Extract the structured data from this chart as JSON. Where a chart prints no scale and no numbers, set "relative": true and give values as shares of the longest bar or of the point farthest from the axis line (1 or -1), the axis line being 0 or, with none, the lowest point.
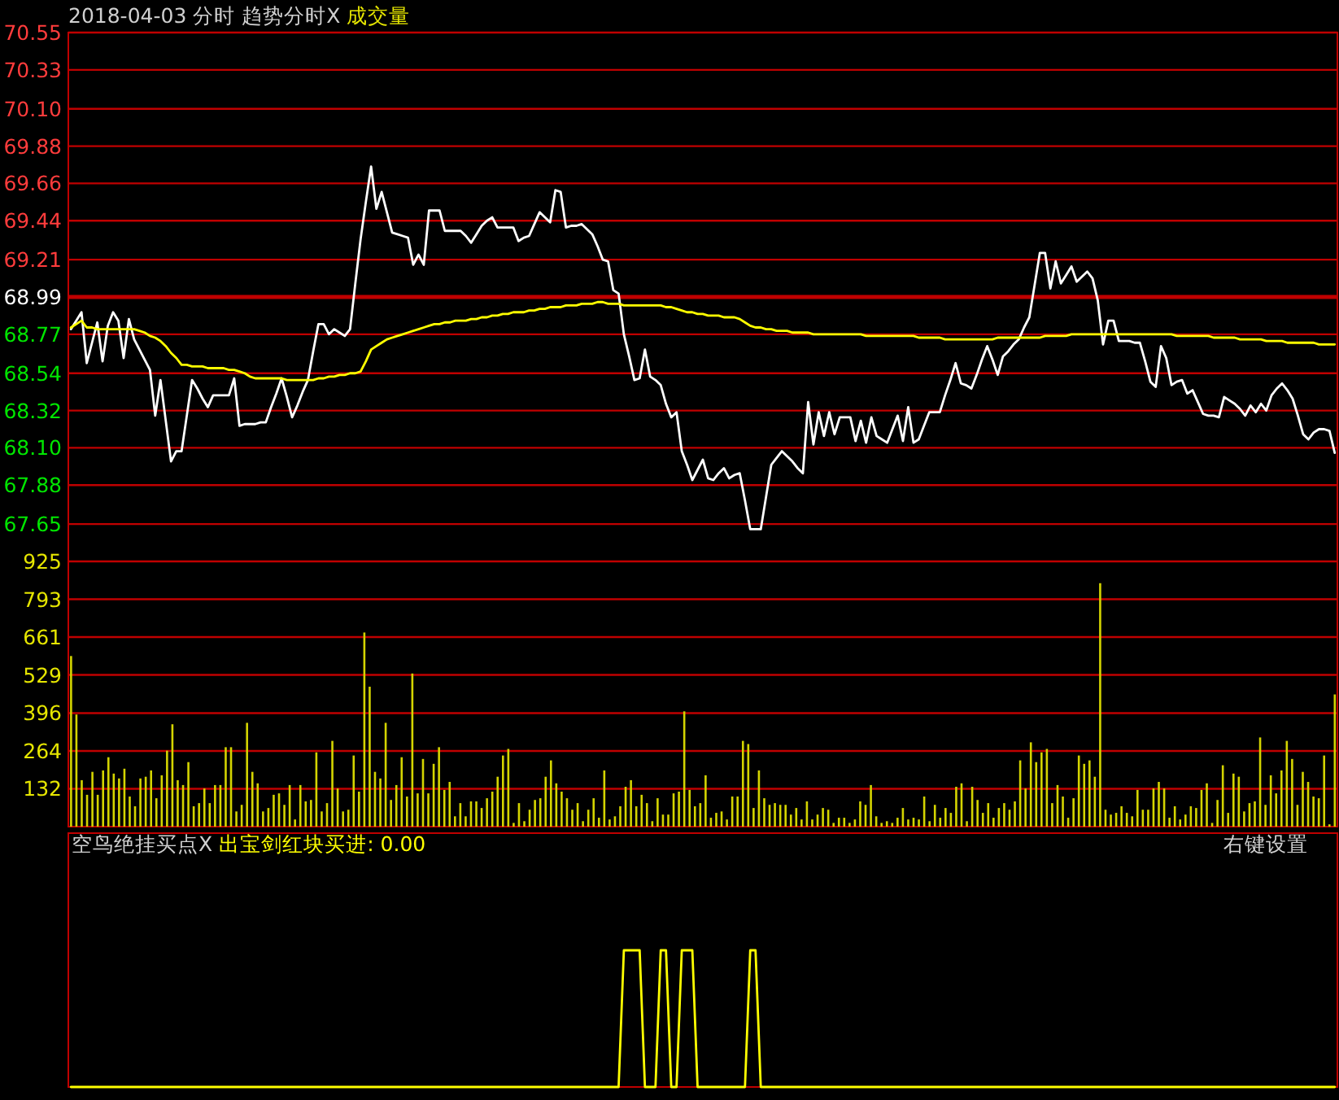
{
  "chart_data": [
    {
      "type": "line",
      "title": "2018-04-03 分时 趋势分时X",
      "subtitle": "成交量",
      "categories": [
        null,
        null,
        null,
        null,
        null,
        null,
        null,
        null,
        null,
        null,
        null,
        null,
        null,
        null,
        null,
        null,
        null,
        null,
        null,
        null,
        null,
        null,
        null,
        null,
        null,
        null,
        null,
        null,
        null,
        null,
        null,
        null,
        null,
        null,
        null,
        null,
        null,
        null,
        null,
        null,
        null,
        null,
        null,
        null,
        null,
        null,
        null,
        null,
        null,
        null,
        null,
        null,
        null,
        null,
        null,
        null,
        null,
        null,
        null,
        null,
        null,
        null,
        null,
        null,
        null,
        null,
        null,
        null,
        null,
        null,
        null,
        null,
        null,
        null,
        null,
        null,
        null,
        null,
        null,
        null,
        null,
        null,
        null,
        null,
        null,
        null,
        null,
        null,
        null,
        null,
        null,
        null,
        null,
        null,
        null,
        null,
        null,
        null,
        null,
        null,
        null,
        null,
        null,
        null,
        null,
        null,
        null,
        null,
        null,
        null,
        null,
        null,
        null,
        null,
        null,
        null,
        null,
        null,
        null,
        null,
        null,
        null,
        null,
        null,
        null,
        null,
        null,
        null,
        null,
        null,
        null,
        null,
        null,
        null,
        null,
        null,
        null,
        null,
        null,
        null,
        null,
        null,
        null,
        null,
        null,
        null,
        null,
        null,
        null,
        null,
        null,
        null,
        null,
        null,
        null,
        null,
        null,
        null,
        null,
        null,
        null,
        null,
        null,
        null,
        null,
        null,
        null,
        null,
        null,
        null,
        null,
        null,
        null,
        null,
        null,
        null,
        null,
        null,
        null,
        null,
        null,
        null,
        null,
        null,
        null,
        null,
        null,
        null,
        null,
        null,
        null,
        null,
        null,
        null,
        null,
        null,
        null,
        null,
        null,
        null,
        null,
        null,
        null,
        null,
        null,
        null,
        null,
        null,
        null,
        null,
        null,
        null,
        null,
        null,
        null,
        null,
        null,
        null,
        null,
        null,
        null,
        null,
        null,
        null,
        null,
        null,
        null,
        null,
        null,
        null,
        null,
        null,
        null,
        null,
        null,
        null,
        null,
        null,
        null,
        null,
        null
      ],
      "ylim": [
        67.43,
        70.55
      ],
      "yticks": [
        67.65,
        67.88,
        {
          "value": 68.1,
          "label": "68.10"
        },
        68.32,
        68.54,
        68.77,
        68.99,
        69.21,
        69.44,
        69.66,
        69.88,
        {
          "value": 70.1,
          "label": "70.10"
        },
        70.33,
        70.55
      ],
      "grid": "y",
      "tick_labels": "y",
      "ref_lines": [
        {
          "axis": "y",
          "value": 68.99,
          "color": "#c00000"
        }
      ],
      "series": [
        {
          "color": "#ffffff",
          "values": [
            68.8,
            68.85,
            68.9,
            68.6,
            68.72,
            68.84,
            68.61,
            68.82,
            68.9,
            68.85,
            68.63,
            68.86,
            68.74,
            68.68,
            68.62,
            68.56,
            68.29,
            68.5,
            68.26,
            68.02,
            68.08,
            68.08,
            68.29,
            68.5,
            68.45,
            68.39,
            68.34,
            68.41,
            68.41,
            68.41,
            68.41,
            68.51,
            68.23,
            68.24,
            68.24,
            68.24,
            68.25,
            68.25,
            68.34,
            68.42,
            68.51,
            68.4,
            68.28,
            68.35,
            68.43,
            68.5,
            68.67,
            68.83,
            68.83,
            68.77,
            68.8,
            68.78,
            68.76,
            68.8,
            69.07,
            69.33,
            69.55,
            69.76,
            69.51,
            69.61,
            69.49,
            69.37,
            69.36,
            69.35,
            69.34,
            69.18,
            69.24,
            69.18,
            69.5,
            69.5,
            69.5,
            69.38,
            69.38,
            69.38,
            69.38,
            69.35,
            69.31,
            69.36,
            69.41,
            69.44,
            69.46,
            69.4,
            69.4,
            69.4,
            69.4,
            69.32,
            69.34,
            69.35,
            69.42,
            69.49,
            69.46,
            69.43,
            69.62,
            69.61,
            69.4,
            69.41,
            69.41,
            69.42,
            69.39,
            69.36,
            69.29,
            69.21,
            69.2,
            69.03,
            69.01,
            68.77,
            68.64,
            68.5,
            68.51,
            68.68,
            68.52,
            68.5,
            68.47,
            68.36,
            68.28,
            68.31,
            68.08,
            68.0,
            67.91,
            67.97,
            68.03,
            67.92,
            67.91,
            67.95,
            67.98,
            67.92,
            67.94,
            67.95,
            67.79,
            67.62,
            67.62,
            67.62,
            67.81,
            68.0,
            68.04,
            68.08,
            68.05,
            68.02,
            67.98,
            67.95,
            68.37,
            68.12,
            68.31,
            68.17,
            68.31,
            68.18,
            68.28,
            68.28,
            68.28,
            68.14,
            68.26,
            68.13,
            68.28,
            68.17,
            68.15,
            68.13,
            68.21,
            68.29,
            68.14,
            68.34,
            68.13,
            68.15,
            68.23,
            68.31,
            68.31,
            68.31,
            68.41,
            68.5,
            68.6,
            68.48,
            68.47,
            68.45,
            68.53,
            68.62,
            68.7,
            68.62,
            68.53,
            68.64,
            68.67,
            68.71,
            68.74,
            68.81,
            68.87,
            69.06,
            69.25,
            69.25,
            69.04,
            69.2,
            69.07,
            69.12,
            69.17,
            69.08,
            69.11,
            69.14,
            69.1,
            68.97,
            68.71,
            68.85,
            68.85,
            68.73,
            68.73,
            68.73,
            68.72,
            68.72,
            68.61,
            68.49,
            68.46,
            68.7,
            68.63,
            68.47,
            68.49,
            68.5,
            68.42,
            68.44,
            68.37,
            68.3,
            68.29,
            68.29,
            68.28,
            68.4,
            68.38,
            68.36,
            68.33,
            68.29,
            68.35,
            68.31,
            68.36,
            68.32,
            68.41,
            68.45,
            68.48,
            68.44,
            68.39,
            68.29,
            68.18,
            68.15,
            68.19,
            68.21,
            68.21,
            68.2,
            68.07
          ]
        },
        {
          "color": "#ffff00",
          "values": [
            68.81,
            68.83,
            68.85,
            68.81,
            68.81,
            68.8,
            68.8,
            68.8,
            68.8,
            68.8,
            68.8,
            68.8,
            68.8,
            68.79,
            68.78,
            68.76,
            68.75,
            68.73,
            68.7,
            68.66,
            68.63,
            68.59,
            68.59,
            68.58,
            68.58,
            68.58,
            68.57,
            68.57,
            68.57,
            68.57,
            68.56,
            68.56,
            68.55,
            68.54,
            68.52,
            68.51,
            68.51,
            68.51,
            68.51,
            68.51,
            68.51,
            68.5,
            68.5,
            68.5,
            68.5,
            68.5,
            68.5,
            68.51,
            68.51,
            68.52,
            68.52,
            68.53,
            68.53,
            68.54,
            68.54,
            68.55,
            68.61,
            68.68,
            68.7,
            68.72,
            68.74,
            68.75,
            68.76,
            68.77,
            68.78,
            68.79,
            68.8,
            68.81,
            68.82,
            68.83,
            68.83,
            68.84,
            68.84,
            68.85,
            68.85,
            68.85,
            68.86,
            68.86,
            68.87,
            68.87,
            68.88,
            68.88,
            68.89,
            68.89,
            68.9,
            68.9,
            68.9,
            68.91,
            68.91,
            68.92,
            68.92,
            68.93,
            68.93,
            68.93,
            68.94,
            68.94,
            68.94,
            68.95,
            68.95,
            68.95,
            68.96,
            68.96,
            68.95,
            68.95,
            68.95,
            68.94,
            68.94,
            68.94,
            68.94,
            68.94,
            68.94,
            68.94,
            68.94,
            68.93,
            68.93,
            68.92,
            68.91,
            68.9,
            68.9,
            68.89,
            68.89,
            68.88,
            68.88,
            68.88,
            68.87,
            68.87,
            68.87,
            68.86,
            68.84,
            68.82,
            68.81,
            68.81,
            68.8,
            68.8,
            68.79,
            68.79,
            68.79,
            68.78,
            68.78,
            68.78,
            68.78,
            68.77,
            68.77,
            68.77,
            68.77,
            68.77,
            68.77,
            68.77,
            68.77,
            68.77,
            68.77,
            68.76,
            68.76,
            68.76,
            68.76,
            68.76,
            68.76,
            68.76,
            68.76,
            68.76,
            68.76,
            68.75,
            68.75,
            68.75,
            68.75,
            68.75,
            68.74,
            68.74,
            68.74,
            68.74,
            68.74,
            68.74,
            68.74,
            68.74,
            68.74,
            68.74,
            68.75,
            68.75,
            68.75,
            68.75,
            68.75,
            68.75,
            68.75,
            68.75,
            68.75,
            68.76,
            68.76,
            68.76,
            68.76,
            68.76,
            68.77,
            68.77,
            68.77,
            68.77,
            68.77,
            68.77,
            68.77,
            68.77,
            68.77,
            68.77,
            68.77,
            68.77,
            68.77,
            68.77,
            68.77,
            68.77,
            68.77,
            68.77,
            68.77,
            68.77,
            68.76,
            68.76,
            68.76,
            68.76,
            68.76,
            68.76,
            68.76,
            68.75,
            68.75,
            68.75,
            68.75,
            68.75,
            68.74,
            68.74,
            68.74,
            68.74,
            68.74,
            68.73,
            68.73,
            68.73,
            68.73,
            68.72,
            68.72,
            68.72,
            68.72,
            68.72,
            68.72,
            68.71,
            68.71,
            68.71,
            68.71
          ]
        }
      ]
    },
    {
      "type": "bar",
      "color": "#d4d400",
      "ylim": [
        0,
        925
      ],
      "yticks": [
        132,
        264,
        396,
        529,
        661,
        793,
        925
      ],
      "grid": "y",
      "categories": [
        null,
        null,
        null,
        null,
        null,
        null,
        null,
        null,
        null,
        null,
        null,
        null,
        null,
        null,
        null,
        null,
        null,
        null,
        null,
        null,
        null,
        null,
        null,
        null,
        null,
        null,
        null,
        null,
        null,
        null,
        null,
        null,
        null,
        null,
        null,
        null,
        null,
        null,
        null,
        null,
        null,
        null,
        null,
        null,
        null,
        null,
        null,
        null,
        null,
        null,
        null,
        null,
        null,
        null,
        null,
        null,
        null,
        null,
        null,
        null,
        null,
        null,
        null,
        null,
        null,
        null,
        null,
        null,
        null,
        null,
        null,
        null,
        null,
        null,
        null,
        null,
        null,
        null,
        null,
        null,
        null,
        null,
        null,
        null,
        null,
        null,
        null,
        null,
        null,
        null,
        null,
        null,
        null,
        null,
        null,
        null,
        null,
        null,
        null,
        null,
        null,
        null,
        null,
        null,
        null,
        null,
        null,
        null,
        null,
        null,
        null,
        null,
        null,
        null,
        null,
        null,
        null,
        null,
        null,
        null,
        null,
        null,
        null,
        null,
        null,
        null,
        null,
        null,
        null,
        null,
        null,
        null,
        null,
        null,
        null,
        null,
        null,
        null,
        null,
        null,
        null,
        null,
        null,
        null,
        null,
        null,
        null,
        null,
        null,
        null,
        null,
        null,
        null,
        null,
        null,
        null,
        null,
        null,
        null,
        null,
        null,
        null,
        null,
        null,
        null,
        null,
        null,
        null,
        null,
        null,
        null,
        null,
        null,
        null,
        null,
        null,
        null,
        null,
        null,
        null,
        null,
        null,
        null,
        null,
        null,
        null,
        null,
        null,
        null,
        null,
        null,
        null,
        null,
        null,
        null,
        null,
        null,
        null,
        null,
        null,
        null,
        null,
        null,
        null,
        null,
        null,
        null,
        null,
        null,
        null,
        null,
        null,
        null,
        null,
        null,
        null,
        null,
        null,
        null,
        null,
        null,
        null,
        null,
        null,
        null,
        null,
        null,
        null,
        null,
        null,
        null,
        null,
        null,
        null,
        null,
        null,
        null,
        null
      ],
      "values": [
        595,
        391,
        162,
        111,
        191,
        111,
        196,
        242,
        185,
        168,
        202,
        105,
        71,
        168,
        174,
        196,
        99,
        179,
        265,
        357,
        162,
        145,
        225,
        71,
        82,
        133,
        82,
        145,
        145,
        277,
        277,
        53,
        76,
        362,
        191,
        151,
        53,
        65,
        111,
        116,
        76,
        145,
        25,
        145,
        88,
        93,
        259,
        53,
        82,
        299,
        133,
        53,
        59,
        248,
        122,
        677,
        488,
        191,
        168,
        362,
        93,
        145,
        242,
        105,
        534,
        116,
        236,
        116,
        219,
        277,
        128,
        156,
        36,
        82,
        36,
        88,
        88,
        65,
        99,
        122,
        174,
        248,
        271,
        13,
        82,
        19,
        59,
        93,
        99,
        174,
        231,
        151,
        122,
        99,
        59,
        82,
        19,
        59,
        99,
        31,
        196,
        25,
        36,
        71,
        139,
        162,
        71,
        111,
        82,
        19,
        99,
        42,
        42,
        116,
        122,
        402,
        128,
        71,
        82,
        179,
        31,
        48,
        53,
        25,
        105,
        105,
        299,
        288,
        65,
        196,
        99,
        76,
        82,
        76,
        76,
        42,
        65,
        25,
        88,
        25,
        42,
        65,
        59,
        13,
        31,
        31,
        13,
        25,
        88,
        76,
        145,
        36,
        13,
        19,
        13,
        31,
        65,
        25,
        31,
        25,
        105,
        19,
        76,
        31,
        65,
        48,
        139,
        151,
        19,
        139,
        93,
        48,
        82,
        31,
        65,
        82,
        59,
        88,
        231,
        133,
        294,
        225,
        259,
        271,
        82,
        145,
        105,
        31,
        99,
        248,
        219,
        231,
        174,
        849,
        59,
        42,
        48,
        71,
        48,
        36,
        128,
        59,
        59,
        133,
        156,
        133,
        31,
        71,
        25,
        42,
        71,
        65,
        128,
        151,
        13,
        93,
        214,
        48,
        185,
        174,
        53,
        82,
        88,
        311,
        76,
        179,
        116,
        196,
        299,
        236,
        76,
        191,
        156,
        105,
        99,
        248,
        8,
        461
      ]
    },
    {
      "type": "line",
      "relative": true,
      "title": "空鸟绝挂买点X",
      "subtitle": "出宝剑红块买进: 0.00",
      "annotations": [
        "右键设置"
      ],
      "tick_labels": false,
      "categories": [
        null,
        null,
        null,
        null,
        null,
        null,
        null,
        null,
        null,
        null,
        null,
        null,
        null,
        null,
        null,
        null,
        null,
        null,
        null,
        null,
        null,
        null,
        null,
        null,
        null,
        null,
        null,
        null,
        null,
        null,
        null,
        null,
        null,
        null,
        null,
        null,
        null,
        null,
        null,
        null,
        null,
        null,
        null,
        null,
        null,
        null,
        null,
        null,
        null,
        null,
        null,
        null,
        null,
        null,
        null,
        null,
        null,
        null,
        null,
        null,
        null,
        null,
        null,
        null,
        null,
        null,
        null,
        null,
        null,
        null,
        null,
        null,
        null,
        null,
        null,
        null,
        null,
        null,
        null,
        null,
        null,
        null,
        null,
        null,
        null,
        null,
        null,
        null,
        null,
        null,
        null,
        null,
        null,
        null,
        null,
        null,
        null,
        null,
        null,
        null,
        null,
        null,
        null,
        null,
        null,
        null,
        null,
        null,
        null,
        null,
        null,
        null,
        null,
        null,
        null,
        null,
        null,
        null,
        null,
        null,
        null,
        null,
        null,
        null,
        null,
        null,
        null,
        null,
        null,
        null,
        null,
        null,
        null,
        null,
        null,
        null,
        null,
        null,
        null,
        null,
        null,
        null,
        null,
        null,
        null,
        null,
        null,
        null,
        null,
        null,
        null,
        null,
        null,
        null,
        null,
        null,
        null,
        null,
        null,
        null,
        null,
        null,
        null,
        null,
        null,
        null,
        null,
        null,
        null,
        null,
        null,
        null,
        null,
        null,
        null,
        null,
        null,
        null,
        null,
        null,
        null,
        null,
        null,
        null,
        null,
        null,
        null,
        null,
        null,
        null,
        null,
        null,
        null,
        null,
        null,
        null,
        null,
        null,
        null,
        null,
        null,
        null,
        null,
        null,
        null,
        null,
        null,
        null,
        null,
        null,
        null,
        null,
        null,
        null,
        null,
        null,
        null,
        null,
        null,
        null,
        null,
        null,
        null,
        null,
        null,
        null,
        null,
        null,
        null,
        null,
        null,
        null,
        null,
        null,
        null,
        null,
        null,
        null,
        null,
        null,
        null
      ],
      "series": [
        {
          "color": "#ffff00",
          "values": [
            0,
            0,
            0,
            0,
            0,
            0,
            0,
            0,
            0,
            0,
            0,
            0,
            0,
            0,
            0,
            0,
            0,
            0,
            0,
            0,
            0,
            0,
            0,
            0,
            0,
            0,
            0,
            0,
            0,
            0,
            0,
            0,
            0,
            0,
            0,
            0,
            0,
            0,
            0,
            0,
            0,
            0,
            0,
            0,
            0,
            0,
            0,
            0,
            0,
            0,
            0,
            0,
            0,
            0,
            0,
            0,
            0,
            0,
            0,
            0,
            0,
            0,
            0,
            0,
            0,
            0,
            0,
            0,
            0,
            0,
            0,
            0,
            0,
            0,
            0,
            0,
            0,
            0,
            0,
            0,
            0,
            0,
            0,
            0,
            0,
            0,
            0,
            0,
            0,
            0,
            0,
            0,
            0,
            0,
            0,
            0,
            0,
            0,
            0,
            0,
            0,
            0,
            0,
            0,
            0,
            1,
            1,
            1,
            1,
            0,
            0,
            0,
            1,
            1,
            0,
            0,
            1,
            1,
            1,
            0,
            0,
            0,
            0,
            0,
            0,
            0,
            0,
            0,
            0,
            1,
            1,
            0,
            0,
            0,
            0,
            0,
            0,
            0,
            0,
            0,
            0,
            0,
            0,
            0,
            0,
            0,
            0,
            0,
            0,
            0,
            0,
            0,
            0,
            0,
            0,
            0,
            0,
            0,
            0,
            0,
            0,
            0,
            0,
            0,
            0,
            0,
            0,
            0,
            0,
            0,
            0,
            0,
            0,
            0,
            0,
            0,
            0,
            0,
            0,
            0,
            0,
            0,
            0,
            0,
            0,
            0,
            0,
            0,
            0,
            0,
            0,
            0,
            0,
            0,
            0,
            0,
            0,
            0,
            0,
            0,
            0,
            0,
            0,
            0,
            0,
            0,
            0,
            0,
            0,
            0,
            0,
            0,
            0,
            0,
            0,
            0,
            0,
            0,
            0,
            0,
            0,
            0,
            0,
            0,
            0,
            0,
            0,
            0,
            0,
            0,
            0,
            0,
            0,
            0,
            0,
            0,
            0,
            0,
            0,
            0,
            0
          ]
        }
      ]
    }
  ]
}
